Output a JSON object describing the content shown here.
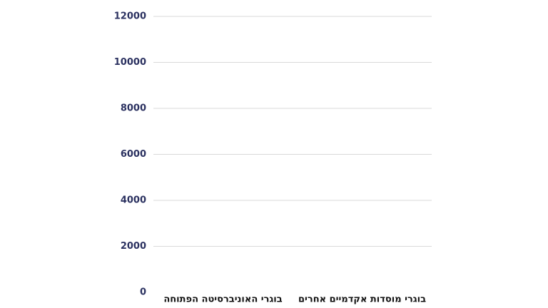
{
  "chart_data": {
    "type": "bar",
    "categories": [
      "בוגרי האוניברסיטה הפתוחה",
      "בוגרי מוסדות אקדמיים אחרים"
    ],
    "values": [
      0,
      0
    ],
    "ylim": [
      0,
      12000
    ],
    "yticks": [
      0,
      2000,
      4000,
      6000,
      8000,
      10000,
      12000
    ],
    "grid": true
  }
}
